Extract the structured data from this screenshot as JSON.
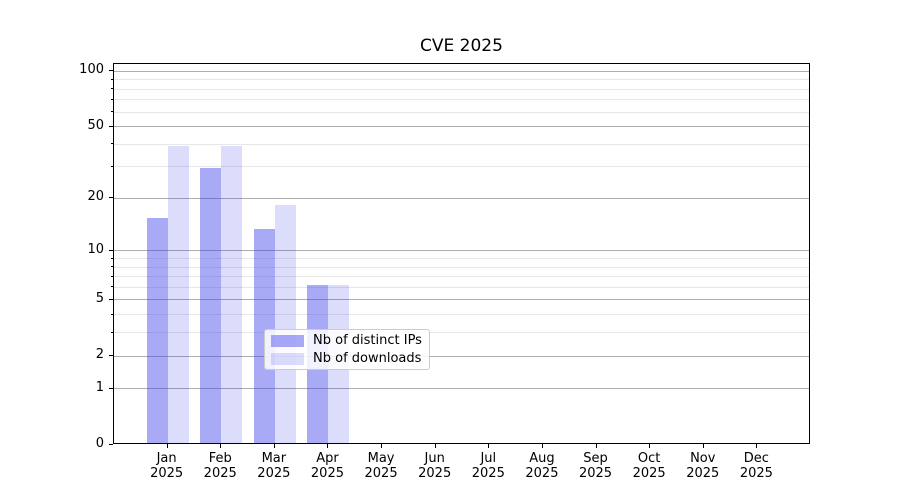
{
  "page": {
    "background": "#ffffff"
  },
  "chart": {
    "title": "CVE 2025",
    "colors": {
      "distinct_ips": "rgba(62,66,235,0.45)",
      "downloads": "rgba(62,66,235,0.18)",
      "major_gridline": "#adadad",
      "minor_gridline": "#e7e7e7",
      "axis_line": "#000000",
      "text": "#000000",
      "legend_border": "#cccccc"
    },
    "legend": {
      "items": [
        {
          "label": "Nb of distinct IPs",
          "color_key": "distinct_ips"
        },
        {
          "label": "Nb of downloads",
          "color_key": "downloads"
        }
      ]
    }
  },
  "chart_data": {
    "type": "bar",
    "title": "CVE 2025",
    "categories": [
      "Jan 2025",
      "Feb 2025",
      "Mar 2025",
      "Apr 2025",
      "May 2025",
      "Jun 2025",
      "Jul 2025",
      "Aug 2025",
      "Sep 2025",
      "Oct 2025",
      "Nov 2025",
      "Dec 2025"
    ],
    "series": [
      {
        "name": "Nb of distinct IPs",
        "color_key": "distinct_ips",
        "values": [
          15,
          29,
          13,
          6,
          0,
          0,
          0,
          0,
          0,
          0,
          0,
          0
        ]
      },
      {
        "name": "Nb of downloads",
        "color_key": "downloads",
        "values": [
          38,
          38,
          18,
          6,
          0,
          0,
          0,
          0,
          0,
          0,
          0,
          0
        ]
      }
    ],
    "yscale": "log1p",
    "ylim": [
      0,
      108
    ],
    "yticks": [
      0,
      1,
      2,
      5,
      10,
      20,
      50,
      100
    ],
    "minor_yticks": [
      3,
      4,
      6,
      7,
      8,
      9,
      30,
      40,
      60,
      70,
      80,
      90
    ],
    "grid": "horizontal-major-and-minor",
    "legend_position": "inside-bottom-center",
    "xlabel": "",
    "ylabel": ""
  }
}
